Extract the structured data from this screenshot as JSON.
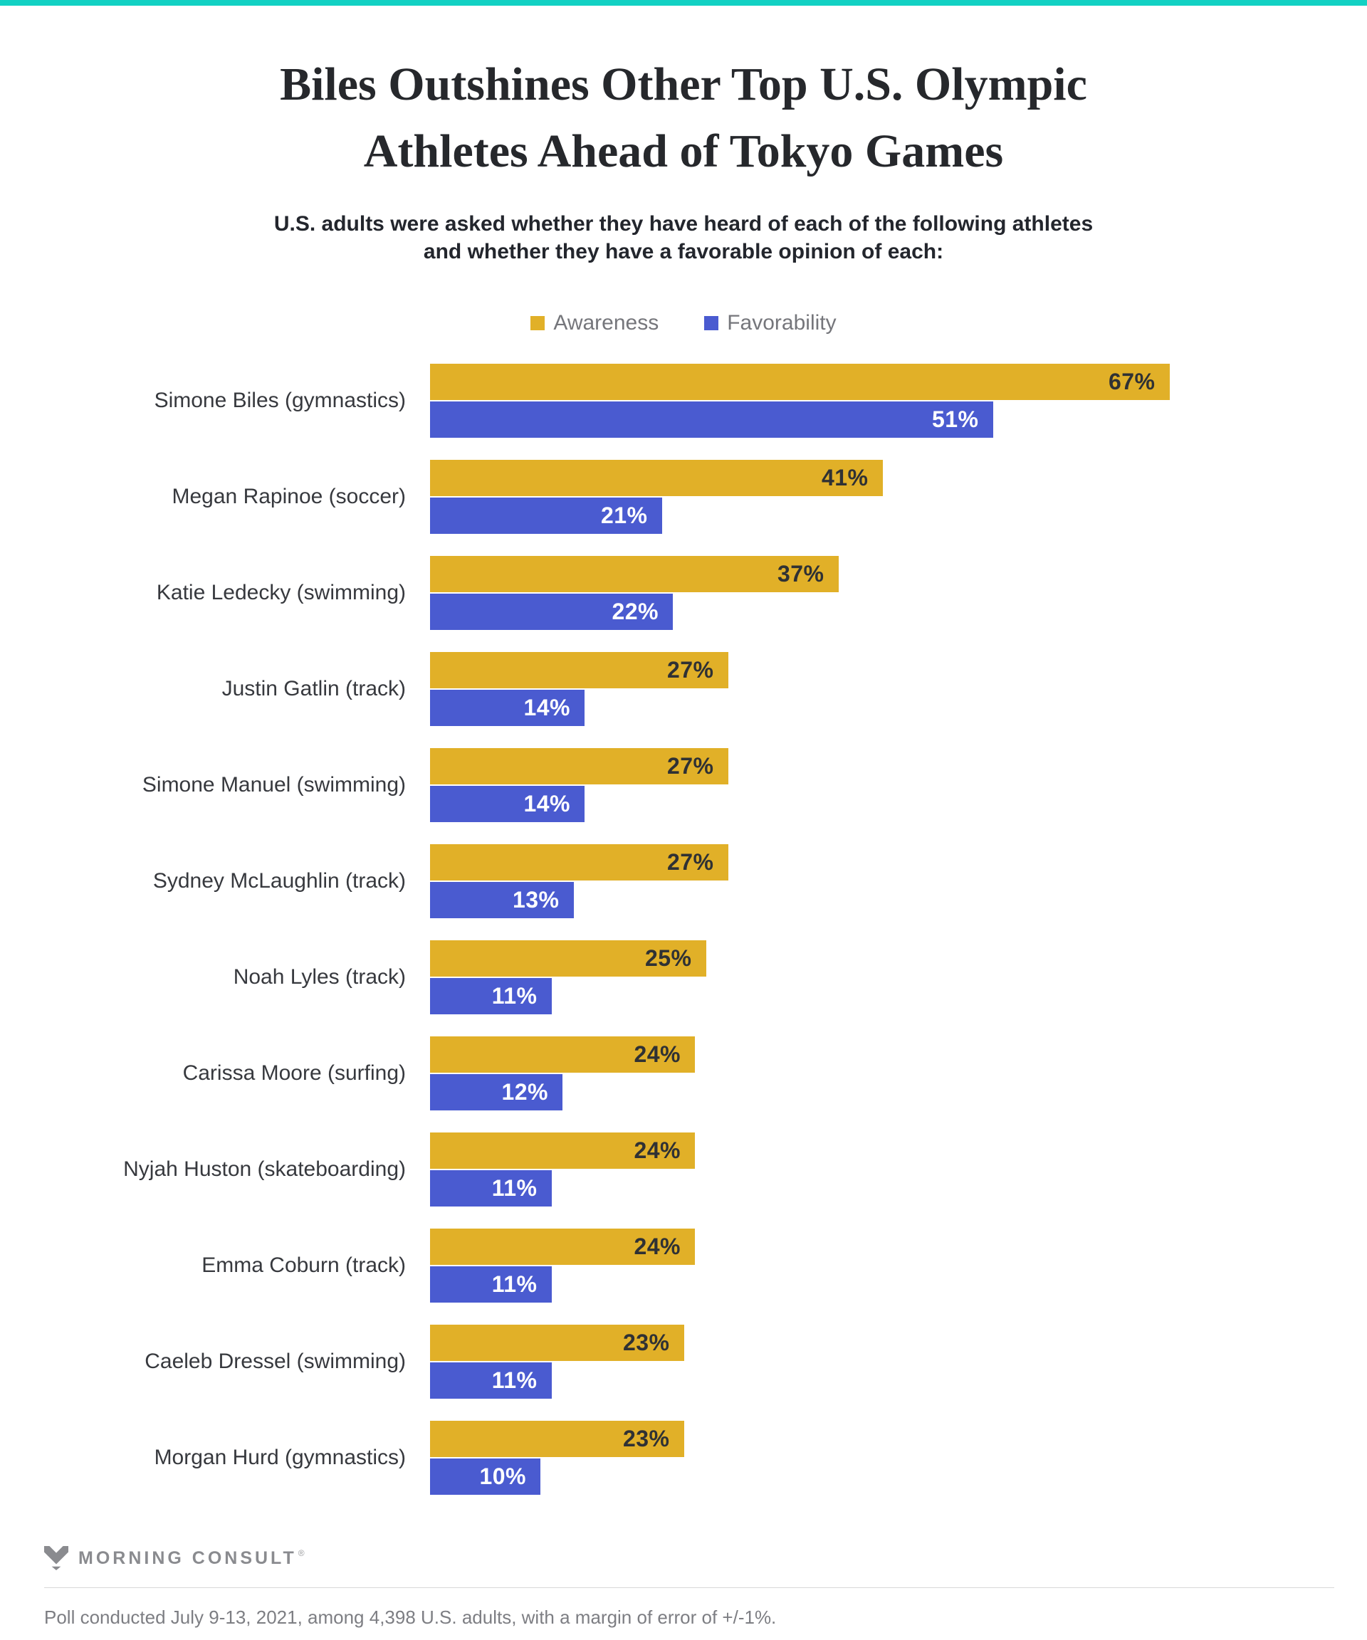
{
  "colors": {
    "accent_bar": "#12D1C3",
    "awareness": "#E1B028",
    "favorability": "#4A5BD0",
    "value_on_gold": "#2F3134",
    "value_on_blue": "#FFFFFF"
  },
  "title": {
    "line1": "Biles Outshines Other Top U.S. Olympic",
    "line2": "Athletes Ahead of Tokyo Games"
  },
  "subtitle": {
    "line1": "U.S. adults were asked whether they have heard of each of the following athletes",
    "line2": "and whether they have a favorable opinion of each:"
  },
  "legend": [
    {
      "label": "Awareness",
      "color": "#E1B028"
    },
    {
      "label": "Favorability",
      "color": "#4A5BD0"
    }
  ],
  "chart_data": {
    "type": "bar",
    "orientation": "horizontal",
    "unit": "%",
    "title": "Biles Outshines Other Top U.S. Olympic Athletes Ahead of Tokyo Games",
    "xlim": [
      0,
      70
    ],
    "grid": false,
    "legend_position": "top",
    "value_labels": "inside-end",
    "categories": [
      "Simone Biles (gymnastics)",
      "Megan Rapinoe (soccer)",
      "Katie Ledecky (swimming)",
      "Justin Gatlin (track)",
      "Simone Manuel (swimming)",
      "Sydney McLaughlin (track)",
      "Noah Lyles (track)",
      "Carissa Moore (surfing)",
      "Nyjah Huston (skateboarding)",
      "Emma Coburn (track)",
      "Caeleb Dressel (swimming)",
      "Morgan Hurd (gymnastics)"
    ],
    "series": [
      {
        "name": "Awareness",
        "color": "#E1B028",
        "values": [
          67,
          41,
          37,
          27,
          27,
          27,
          25,
          24,
          24,
          24,
          23,
          23
        ]
      },
      {
        "name": "Favorability",
        "color": "#4A5BD0",
        "values": [
          51,
          21,
          22,
          14,
          14,
          13,
          11,
          12,
          11,
          11,
          11,
          10
        ]
      }
    ]
  },
  "footer": {
    "logo_text": "MORNING CONSULT",
    "registered_mark": "®",
    "note": "Poll conducted July 9-13, 2021, among 4,398 U.S. adults, with a margin of error of +/-1%."
  }
}
